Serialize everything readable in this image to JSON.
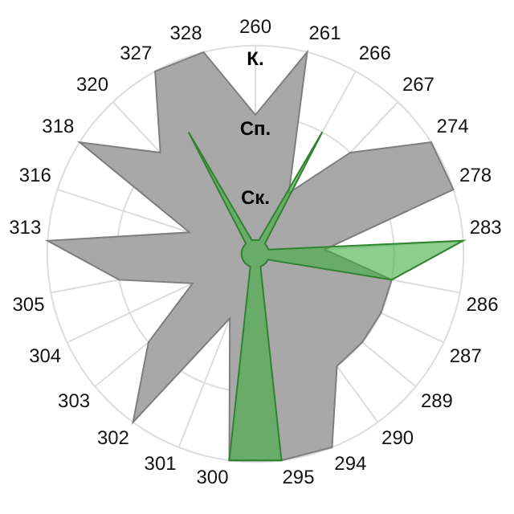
{
  "chart_data": {
    "type": "radar",
    "categories": [
      "260",
      "261",
      "266",
      "267",
      "274",
      "278",
      "283",
      "286",
      "287",
      "289",
      "290",
      "294",
      "295",
      "300",
      "301",
      "302",
      "303",
      "304",
      "305",
      "313",
      "316",
      "318",
      "320",
      "327",
      "328"
    ],
    "series": [
      {
        "color": "#a8a8a8",
        "values": [
          2,
          3,
          1,
          2,
          3,
          3,
          1,
          2,
          2,
          2,
          2,
          3,
          3,
          3,
          1,
          3,
          2,
          1,
          2,
          3,
          1,
          3,
          2,
          3,
          3
        ]
      },
      {
        "color": "#3fae3f",
        "values": [
          0.2,
          0.2,
          2,
          0.2,
          0.2,
          0.2,
          3,
          2,
          0.2,
          0.2,
          0.2,
          0.2,
          3,
          3,
          0.2,
          0.2,
          0.2,
          0.2,
          0.2,
          0.2,
          0.2,
          0.2,
          0.2,
          2,
          0.2
        ]
      }
    ],
    "ylim": [
      0,
      3
    ],
    "yticks": [
      {
        "value": 1,
        "label": "Ск."
      },
      {
        "value": 2,
        "label": "Сп."
      },
      {
        "value": 3,
        "label": "К."
      }
    ],
    "grid": true,
    "legend": false,
    "marker": "none"
  }
}
